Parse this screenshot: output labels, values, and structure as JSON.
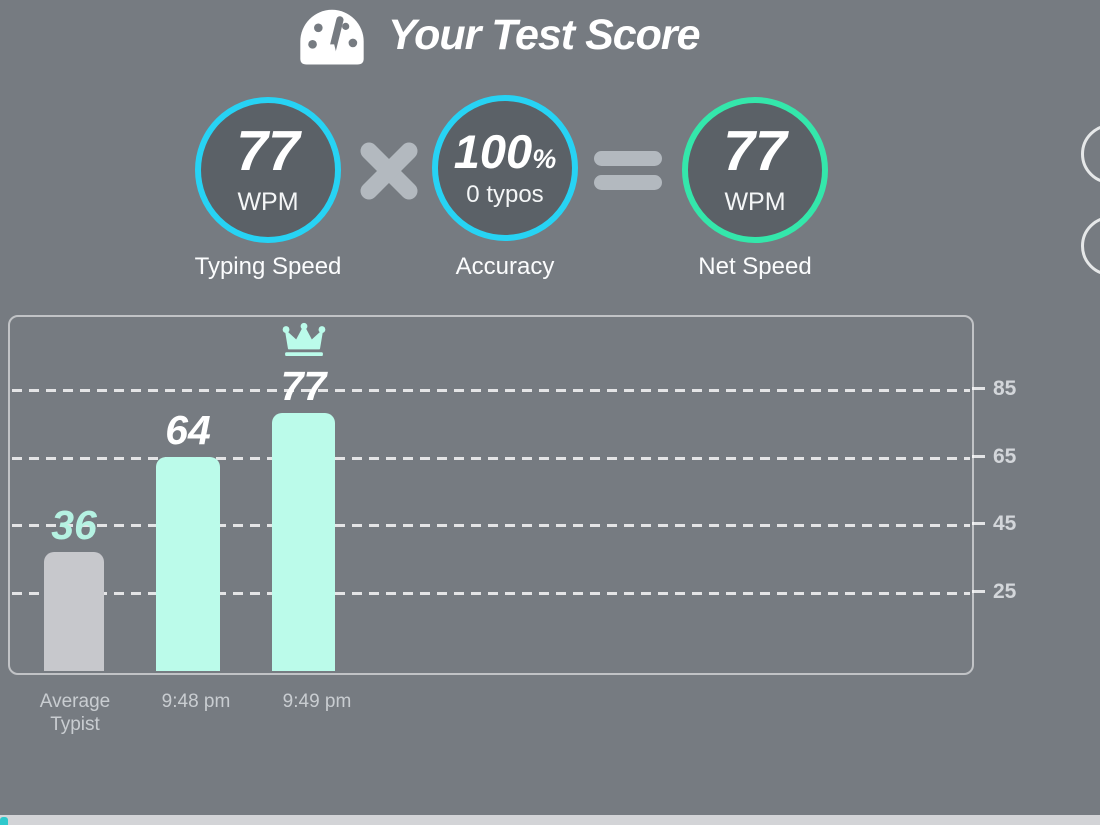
{
  "page": {
    "background": "#767b81"
  },
  "header": {
    "title": "Your Test Score",
    "icon": "gauge-icon"
  },
  "score_row": {
    "multiply_symbol": "×",
    "equals_symbol": "=",
    "typing_speed": {
      "value": "77",
      "unit": "WPM",
      "caption": "Typing Speed",
      "ring_color": "#27d3f4"
    },
    "accuracy": {
      "value": "100",
      "suffix": "%",
      "detail": "0 typos",
      "caption": "Accuracy",
      "ring_color": "#27d3f4"
    },
    "net_speed": {
      "value": "77",
      "unit": "WPM",
      "caption": "Net Speed",
      "ring_color": "#34e7ab"
    }
  },
  "chart_data": {
    "type": "bar",
    "title": "",
    "xlabel": "",
    "ylabel": "",
    "categories": [
      "Average Typist",
      "9:48 pm",
      "9:49 pm"
    ],
    "values": [
      36,
      64,
      77
    ],
    "bar_colors": [
      "#c7c8cc",
      "#bbfbea",
      "#bbfbea"
    ],
    "value_label_colors": [
      "#b5f2e2",
      "#ffffff",
      "#ffffff"
    ],
    "y_ticks": [
      85,
      65,
      45,
      25
    ],
    "ylim": [
      0,
      106
    ],
    "grid": "horizontal-dashed",
    "legend": "none",
    "crown_on_index": 2,
    "crown_color": "#bbfbea"
  },
  "colors": {
    "circle_fill": "#5b6167",
    "operator_gray": "#b3b9bf",
    "axis_label": "#d3d6da",
    "category_label": "#c9cdd1"
  }
}
